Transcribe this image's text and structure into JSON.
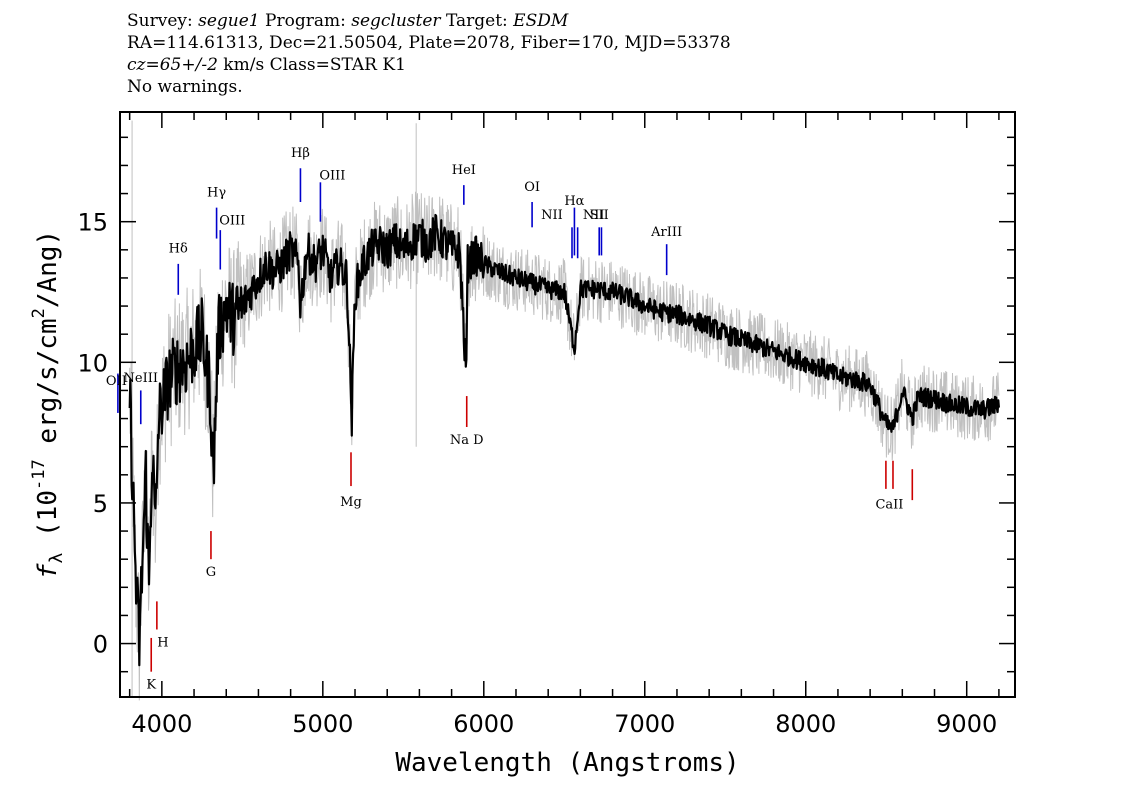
{
  "header": {
    "survey_label": "Survey:",
    "survey_value": "segue1",
    "program_label": "Program:",
    "program_value": "segcluster",
    "target_label": "Target:",
    "target_value": "ESDM",
    "line2": "RA=114.61313, Dec=21.50504, Plate=2078, Fiber=170, MJD=53378",
    "cz_value": "cz=65+/-2",
    "cz_rest": "km/s Class=STAR K1",
    "line4": "No warnings."
  },
  "chart_data": {
    "type": "line",
    "xlabel": "Wavelength (Angstroms)",
    "ylabel_prefix": "f",
    "ylabel_sub": "λ",
    "ylabel_main": " (10",
    "ylabel_exp": "-17",
    "ylabel_mid": " erg/s/cm",
    "ylabel_exp2": "2",
    "ylabel_end": "/Ang)",
    "xlim": [
      3740,
      9300
    ],
    "ylim": [
      -1.9,
      18.9
    ],
    "x_ticks": [
      4000,
      5000,
      6000,
      7000,
      8000,
      9000
    ],
    "x_tick_labels": [
      "4000",
      "5000",
      "6000",
      "7000",
      "8000",
      "9000"
    ],
    "y_ticks": [
      0,
      5,
      10,
      15
    ],
    "y_tick_labels": [
      "0",
      "5",
      "10",
      "15"
    ],
    "colors": {
      "raw": "#c0c0c0",
      "smooth": "#000000",
      "emission": "#0000cc",
      "absorption": "#cc0000"
    },
    "series": [
      {
        "role": "smoothed flux",
        "x": [
          3800,
          3820,
          3840,
          3860,
          3880,
          3900,
          3920,
          3940,
          3960,
          3980,
          4000,
          4050,
          4100,
          4150,
          4200,
          4250,
          4300,
          4320,
          4350,
          4400,
          4450,
          4500,
          4550,
          4600,
          4650,
          4700,
          4750,
          4800,
          4850,
          4861,
          4900,
          4950,
          5000,
          5050,
          5100,
          5150,
          5180,
          5200,
          5250,
          5300,
          5350,
          5400,
          5450,
          5500,
          5550,
          5600,
          5650,
          5700,
          5750,
          5800,
          5850,
          5890,
          5900,
          5950,
          6000,
          6100,
          6200,
          6300,
          6400,
          6500,
          6563,
          6600,
          6700,
          6800,
          6900,
          7000,
          7100,
          7200,
          7300,
          7400,
          7500,
          7600,
          7700,
          7800,
          7900,
          8000,
          8100,
          8200,
          8300,
          8400,
          8498,
          8542,
          8600,
          8662,
          8700,
          8800,
          8900,
          9000,
          9100,
          9200
        ],
        "y": [
          9.0,
          5.5,
          2.0,
          0.0,
          3.0,
          6.0,
          2.0,
          7.0,
          4.0,
          8.0,
          8.5,
          9.5,
          9.8,
          10.0,
          10.5,
          11.0,
          9.0,
          6.0,
          11.0,
          12.0,
          11.5,
          12.0,
          12.5,
          13.0,
          13.5,
          13.2,
          13.5,
          14.0,
          13.5,
          12.0,
          14.0,
          13.5,
          14.0,
          13.0,
          13.5,
          13.0,
          8.0,
          12.5,
          13.5,
          14.0,
          14.2,
          14.0,
          14.3,
          14.0,
          14.3,
          14.5,
          14.2,
          14.6,
          14.3,
          14.0,
          14.0,
          9.5,
          13.5,
          13.8,
          13.5,
          13.2,
          13.0,
          12.8,
          12.6,
          12.5,
          10.5,
          12.6,
          12.6,
          12.5,
          12.3,
          12.0,
          11.8,
          11.7,
          11.5,
          11.3,
          11.0,
          10.8,
          10.6,
          10.4,
          10.2,
          10.0,
          9.8,
          9.5,
          9.4,
          9.2,
          7.8,
          7.6,
          9.0,
          8.0,
          8.8,
          8.7,
          8.5,
          8.4,
          8.3,
          8.5
        ]
      }
    ],
    "line_markers": [
      {
        "label": "OII",
        "x": 3727,
        "kind": "emission"
      },
      {
        "label": "NeIII",
        "x": 3869,
        "kind": "emission"
      },
      {
        "label": "Hδ",
        "x": 4102,
        "kind": "emission"
      },
      {
        "label": "Hγ",
        "x": 4340,
        "kind": "emission"
      },
      {
        "label": "OIII",
        "x": 4363,
        "kind": "emission"
      },
      {
        "label": "Hβ",
        "x": 4861,
        "kind": "emission"
      },
      {
        "label": "OIII",
        "x": 4985,
        "kind": "emission"
      },
      {
        "label": "HeI",
        "x": 5876,
        "kind": "emission"
      },
      {
        "label": "OI",
        "x": 6300,
        "kind": "emission"
      },
      {
        "label": "NII",
        "x": 6548,
        "kind": "emission"
      },
      {
        "label": "Hα",
        "x": 6563,
        "kind": "emission"
      },
      {
        "label": "NII",
        "x": 6583,
        "kind": "emission"
      },
      {
        "label": "SII",
        "x": 6717,
        "kind": "emission"
      },
      {
        "label": "SII",
        "x": 6731,
        "kind": "emission"
      },
      {
        "label": "ArIII",
        "x": 7136,
        "kind": "emission"
      },
      {
        "label": "K",
        "x": 3934,
        "kind": "absorption"
      },
      {
        "label": "H",
        "x": 3969,
        "kind": "absorption"
      },
      {
        "label": "G",
        "x": 4305,
        "kind": "absorption"
      },
      {
        "label": "Mg",
        "x": 5175,
        "kind": "absorption"
      },
      {
        "label": "Na D",
        "x": 5894,
        "kind": "absorption"
      },
      {
        "label": "CaII",
        "x": 8498,
        "kind": "absorption"
      },
      {
        "label": "CaII",
        "x": 8542,
        "kind": "absorption"
      },
      {
        "label": "CaII",
        "x": 8662,
        "kind": "absorption"
      }
    ]
  }
}
